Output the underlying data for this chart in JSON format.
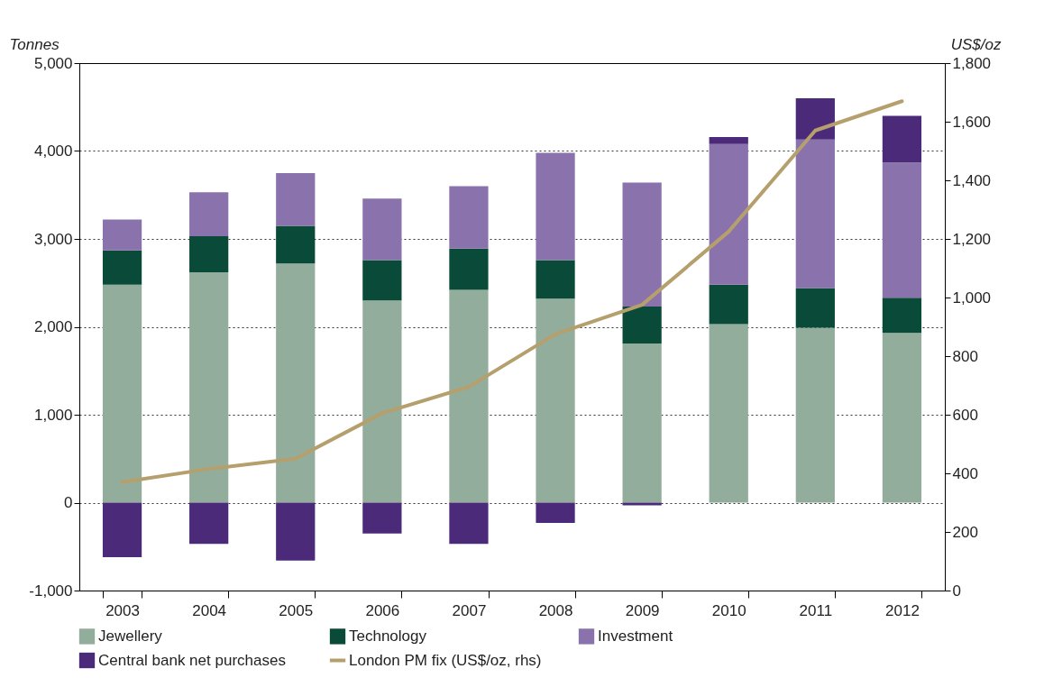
{
  "chart_data": {
    "type": "bar",
    "stacked": true,
    "ylabel": "Tonnes",
    "y2label": "US$/oz",
    "categories": [
      "2003",
      "2004",
      "2005",
      "2006",
      "2007",
      "2008",
      "2009",
      "2010",
      "2011",
      "2012"
    ],
    "series": [
      {
        "name": "Jewellery",
        "color": "#93ad9c",
        "values": [
          2480,
          2620,
          2720,
          2300,
          2420,
          2320,
          1810,
          2030,
          1990,
          1930
        ]
      },
      {
        "name": "Technology",
        "color": "#0a4a38",
        "values": [
          390,
          410,
          430,
          460,
          470,
          440,
          420,
          450,
          450,
          400
        ]
      },
      {
        "name": "Investment",
        "color": "#8a72ad",
        "values": [
          350,
          500,
          600,
          700,
          710,
          1220,
          1410,
          1600,
          1690,
          1540
        ]
      },
      {
        "name": "Central bank net purchases",
        "color": "#4b2a7a",
        "values": [
          -620,
          -470,
          -660,
          -350,
          -470,
          -230,
          -30,
          80,
          470,
          530
        ]
      },
      {
        "name": "London PM fix (US$/oz, rhs)",
        "type": "line",
        "axis": "y2",
        "color": "#b5a06d",
        "values": [
          370,
          415,
          450,
          605,
          695,
          875,
          975,
          1225,
          1570,
          1670
        ]
      }
    ],
    "ylim": [
      -1000,
      5000
    ],
    "yticks": [
      {
        "value": -1000,
        "label": "-1,000"
      },
      0,
      {
        "value": 1000,
        "label": "1,000"
      },
      {
        "value": 2000,
        "label": "2,000"
      },
      {
        "value": 3000,
        "label": "3,000"
      },
      {
        "value": 4000,
        "label": "4,000"
      },
      {
        "value": 5000,
        "label": "5,000"
      }
    ],
    "y2lim": [
      0,
      1800
    ],
    "y2ticks": [
      0,
      200,
      400,
      600,
      800,
      {
        "value": 1000,
        "label": "1,000"
      },
      {
        "value": 1200,
        "label": "1,200"
      },
      {
        "value": 1400,
        "label": "1,400"
      },
      {
        "value": 1600,
        "label": "1,600"
      },
      {
        "value": 1800,
        "label": "1,800"
      }
    ],
    "grid": "y",
    "legend": "bottom",
    "marker": "none",
    "line_style": "solid"
  }
}
